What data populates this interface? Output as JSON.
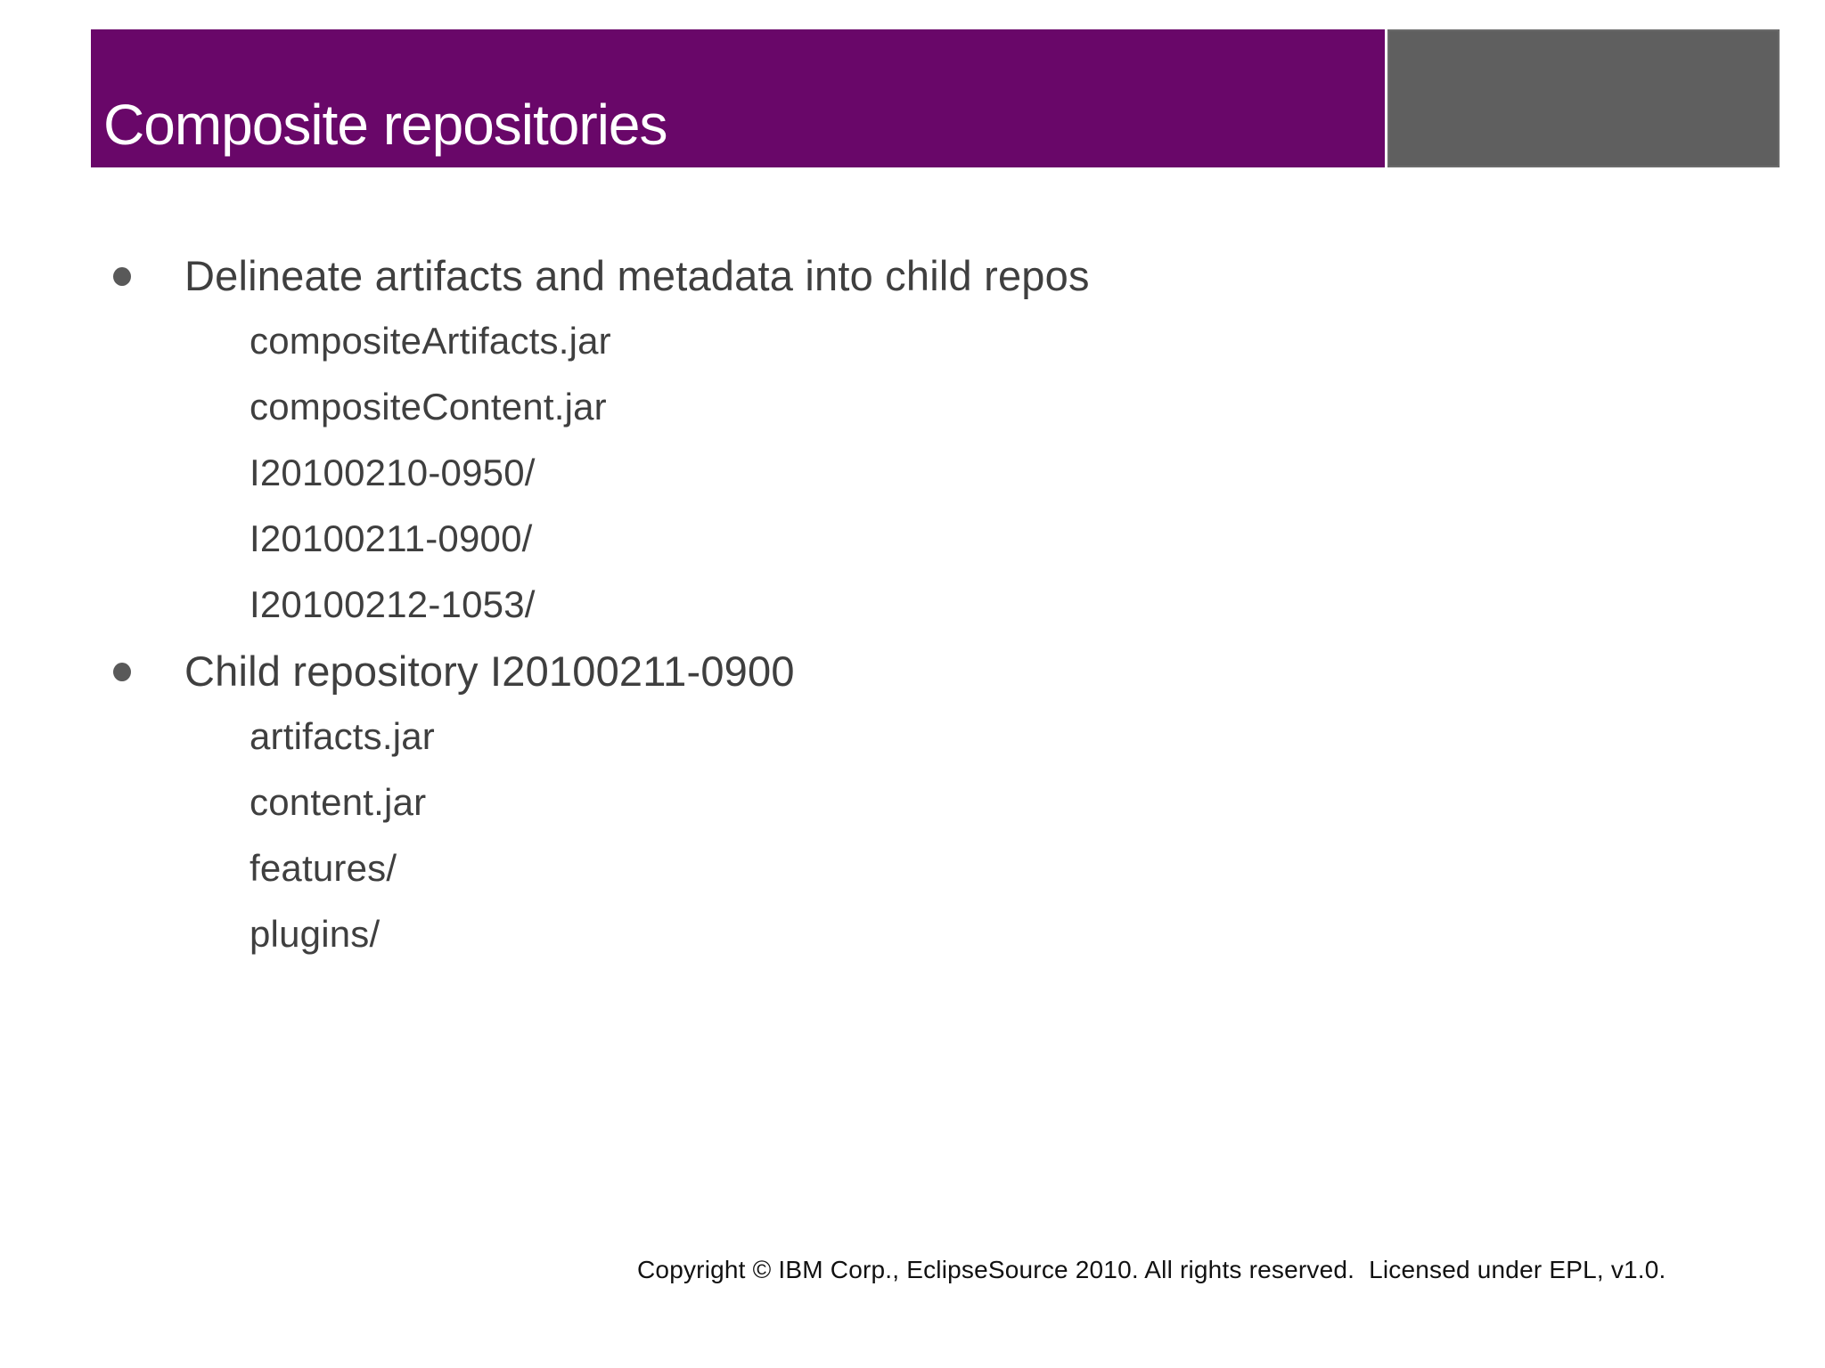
{
  "slide": {
    "title": "Composite repositories",
    "bullets": [
      {
        "label": "Delineate artifacts and metadata into child repos",
        "children": [
          "compositeArtifacts.jar",
          "compositeContent.jar",
          "I20100210-0950/",
          "I20100211-0900/",
          "I20100212-1053/"
        ]
      },
      {
        "label": "Child repository I20100211-0900",
        "children": [
          "artifacts.jar",
          "content.jar",
          "features/",
          "plugins/"
        ]
      }
    ],
    "footer": "Copyright © IBM Corp., EclipseSource 2010. All rights reserved.  Licensed under EPL, v1.0.",
    "colors": {
      "title_bar_purple": "#690769",
      "corner_box_gray": "#5F5F5F",
      "title_text": "#FFFFFF",
      "body_text": "#3F3F3F",
      "footer_text": "#111111",
      "background": "#FFFFFF"
    }
  }
}
